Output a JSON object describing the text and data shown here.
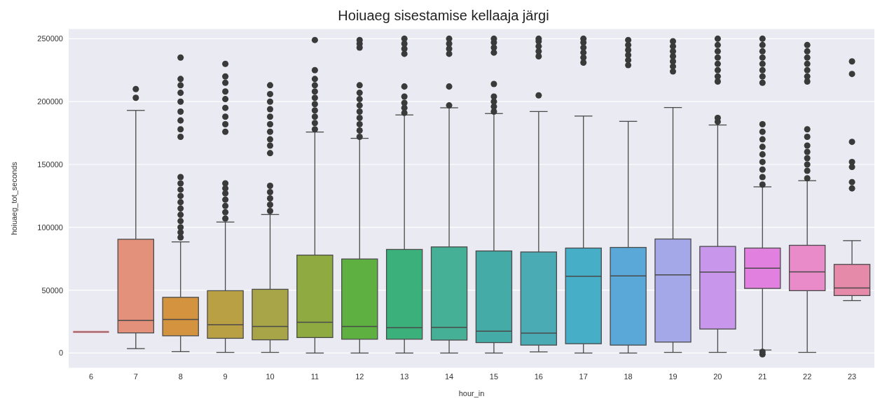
{
  "chart_data": {
    "type": "box",
    "title": "Hoiuaeg sisestamise kellaaja järgi",
    "xlabel": "hour_in",
    "ylabel": "hoiuaeg_tot_seconds",
    "categories": [
      "6",
      "7",
      "8",
      "9",
      "10",
      "11",
      "12",
      "13",
      "14",
      "15",
      "16",
      "17",
      "18",
      "19",
      "20",
      "21",
      "22",
      "23"
    ],
    "colors": [
      "#e5888f",
      "#e3917b",
      "#d4933f",
      "#b9a044",
      "#a8a448",
      "#8eaa40",
      "#5eb040",
      "#3bb07a",
      "#45b095",
      "#45aba6",
      "#4aabb5",
      "#46aec7",
      "#5aa8d8",
      "#a4a7e8",
      "#c896ea",
      "#e280e0",
      "#e98bc8",
      "#e68aaa"
    ],
    "boxes": [
      {
        "low": 16800,
        "q1": 16800,
        "median": 16800,
        "q3": 16800,
        "high": 16800
      },
      {
        "low": 3500,
        "q1": 16000,
        "median": 26000,
        "q3": 90500,
        "high": 193000,
        "outliers": [
          203000,
          210000
        ]
      },
      {
        "low": 1100,
        "q1": 13700,
        "median": 26700,
        "q3": 44300,
        "high": 88400,
        "outliers": [
          92000,
          96000,
          100000,
          105000,
          110000,
          115000,
          120000,
          125000,
          130000,
          135000,
          140000,
          172000,
          178000,
          185000,
          192000,
          200000,
          207000,
          213000,
          218000,
          235000
        ]
      },
      {
        "low": 500,
        "q1": 11700,
        "median": 22500,
        "q3": 49600,
        "high": 104200,
        "outliers": [
          107000,
          112000,
          117000,
          122000,
          127000,
          131000,
          135000,
          176000,
          182000,
          188000,
          195000,
          202000,
          208000,
          215000,
          220000,
          230000
        ]
      },
      {
        "low": 500,
        "q1": 10500,
        "median": 21100,
        "q3": 50700,
        "high": 110200,
        "outliers": [
          113000,
          118000,
          123000,
          128000,
          133000,
          159000,
          165000,
          170000,
          176000,
          182000,
          188000,
          194000,
          200000,
          206000,
          213000
        ]
      },
      {
        "low": 0,
        "q1": 12300,
        "median": 24500,
        "q3": 77900,
        "high": 175800,
        "outliers": [
          178000,
          183000,
          188000,
          193000,
          198000,
          203000,
          208000,
          213000,
          218000,
          225000,
          249000
        ]
      },
      {
        "low": 0,
        "q1": 11000,
        "median": 21100,
        "q3": 74800,
        "high": 170800,
        "outliers": [
          172000,
          177000,
          182000,
          187000,
          192000,
          197000,
          202000,
          207000,
          213000,
          243000,
          246000,
          249000
        ]
      },
      {
        "low": 0,
        "q1": 11000,
        "median": 20200,
        "q3": 82400,
        "high": 189400,
        "outliers": [
          191000,
          195000,
          199000,
          204000,
          212000,
          238000,
          242000,
          246000,
          250000
        ]
      },
      {
        "low": 0,
        "q1": 10300,
        "median": 20400,
        "q3": 84400,
        "high": 195100,
        "outliers": [
          197000,
          212000,
          238000,
          242000,
          246000,
          250000
        ]
      },
      {
        "low": 0,
        "q1": 8300,
        "median": 17300,
        "q3": 81200,
        "high": 190500,
        "outliers": [
          192000,
          196000,
          200000,
          204000,
          214000,
          239000,
          243000,
          247000,
          250000
        ]
      },
      {
        "low": 900,
        "q1": 6300,
        "median": 15900,
        "q3": 80400,
        "high": 192100,
        "outliers": [
          205000,
          236000,
          240000,
          244000,
          248000,
          250000
        ]
      },
      {
        "low": 0,
        "q1": 7400,
        "median": 61100,
        "q3": 83500,
        "high": 188500,
        "outliers": [
          231000,
          235000,
          239000,
          243000,
          247000,
          250000
        ]
      },
      {
        "low": 0,
        "q1": 6300,
        "median": 61300,
        "q3": 84000,
        "high": 184300,
        "outliers": [
          229000,
          233000,
          237000,
          241000,
          245000,
          249000
        ]
      },
      {
        "low": 500,
        "q1": 8700,
        "median": 62200,
        "q3": 90700,
        "high": 195300,
        "outliers": [
          224000,
          228000,
          232000,
          236000,
          240000,
          244000,
          248000
        ]
      },
      {
        "low": 500,
        "q1": 19100,
        "median": 64400,
        "q3": 84800,
        "high": 181400,
        "outliers": [
          184000,
          187000,
          216000,
          220000,
          225000,
          230000,
          235000,
          240000,
          245000,
          250000
        ]
      },
      {
        "low": 2400,
        "q1": 51400,
        "median": 67500,
        "q3": 83500,
        "high": 132200,
        "outliers": [
          -1000,
          1000,
          134000,
          140000,
          146000,
          152000,
          158000,
          164000,
          170000,
          176000,
          182000,
          215000,
          220000,
          225000,
          230000,
          235000,
          240000,
          245000,
          250000
        ]
      },
      {
        "low": 500,
        "q1": 49600,
        "median": 64600,
        "q3": 85700,
        "high": 137100,
        "outliers": [
          139000,
          145000,
          150000,
          155000,
          160000,
          165000,
          172000,
          178000,
          216000,
          220000,
          225000,
          230000,
          235000,
          240000,
          245000
        ]
      },
      {
        "low": 41700,
        "q1": 45700,
        "median": 51800,
        "q3": 70500,
        "high": 89400,
        "outliers": [
          131000,
          136000,
          148000,
          152000,
          168000,
          222000,
          232000
        ]
      }
    ],
    "ylim": [
      -12000,
      258000
    ],
    "yticks": [
      0,
      50000,
      100000,
      150000,
      200000,
      250000
    ],
    "grid": "y"
  }
}
